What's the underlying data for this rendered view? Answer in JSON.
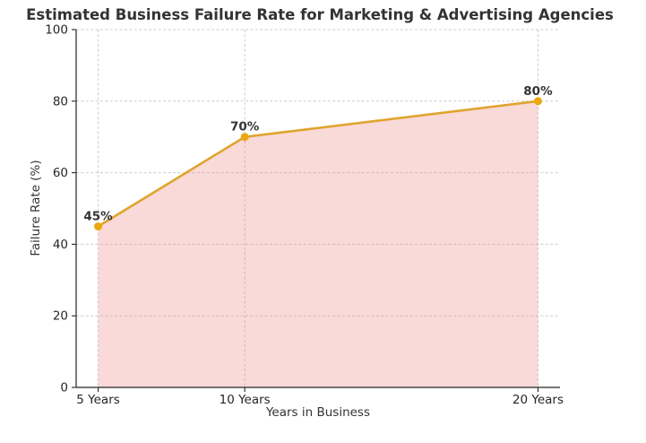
{
  "chart_data": {
    "type": "area",
    "title": "Estimated Business Failure Rate for Marketing & Advertising Agencies",
    "xlabel": "Years in Business",
    "ylabel": "Failure Rate (%)",
    "x": [
      5,
      10,
      20
    ],
    "values": [
      45,
      70,
      80
    ],
    "point_labels": [
      "45%",
      "70%",
      "80%"
    ],
    "x_tick_labels": [
      "5 Years",
      "10 Years",
      "20 Years"
    ],
    "y_ticks": [
      0,
      20,
      40,
      60,
      80,
      100
    ],
    "xlim": [
      4.25,
      20.75
    ],
    "ylim": [
      0,
      100
    ],
    "grid": "dashed",
    "legend": "none",
    "colors": {
      "line": "#E0A42E",
      "marker": "#E8A90F",
      "fill": "rgba(240,128,128,0.30)",
      "grid": "#CCCCCC",
      "axis": "#262626",
      "text": "#333333",
      "background": "#FFFFFF"
    }
  }
}
